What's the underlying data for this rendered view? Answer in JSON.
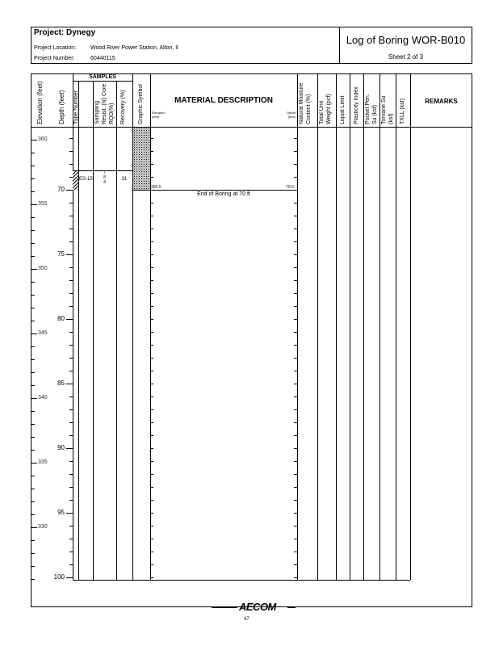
{
  "header": {
    "project": "Project: Dynegy",
    "location_label": "Project Location:",
    "location": "Wood River Power Station, Alton, Il",
    "number_label": "Project Number:",
    "number": "60440115",
    "title": "Log of Boring WOR-B010",
    "sheet": "Sheet 2 of 3"
  },
  "columns": {
    "elevation": "Elevation (feet)",
    "depth": "Depth (feet)",
    "samples": "SAMPLES",
    "type": "Type",
    "number": "Number",
    "blows": "Sampling Resist. (N) Core RQD(%)",
    "recovery": "Recovery (%)",
    "graphic": "Graphic Symbol",
    "material": "MATERIAL DESCRIPTION",
    "mat_elev": "Elevation (feet)",
    "mat_depth": "Depth (feet)",
    "moisture": "Natural Moisture Content (%)",
    "unit_weight": "Total Unit Weight (pcf)",
    "ll": "Liquid Limit",
    "pi": "Plasticity Index",
    "pocket": "Pocket Pen. Su (ksf)",
    "torvane": "Torvane Su (ksf)",
    "txll": "TXLL (ksf)",
    "remarks": "REMARKS"
  },
  "depth_labels": [
    "70",
    "75",
    "80",
    "85",
    "90",
    "95",
    "100"
  ],
  "elevation_labels": [
    "360",
    "355",
    "350",
    "345",
    "340",
    "335",
    "330"
  ],
  "sample": {
    "number": "ES-15",
    "blows": [
      "7",
      "8",
      "4"
    ],
    "recovery": "31"
  },
  "layer": {
    "elevation": "356.0",
    "depth": "70.0",
    "description": "End of Boring at 70 ft"
  },
  "footer": {
    "logo": "AECOM",
    "page": "47"
  }
}
